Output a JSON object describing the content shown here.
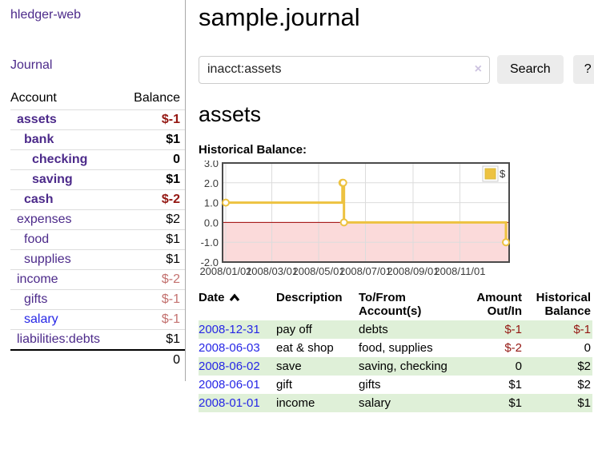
{
  "app": {
    "title": "hledger-web",
    "nav_journal": "Journal"
  },
  "colors": {
    "link_purple": "#4c2a8a",
    "link_blue": "#2626e6",
    "neg_strong": "#941712",
    "neg_soft": "#c3716f",
    "row_green": "#dff0d8",
    "button_bg": "#ececec",
    "chart_gold": "#edc240"
  },
  "sidebar": {
    "table": {
      "col_account": "Account",
      "col_balance": "Balance",
      "rows": [
        {
          "account": "assets",
          "balance": "$-1",
          "indent": 1,
          "bold": true,
          "neg": "strong"
        },
        {
          "account": "bank",
          "balance": "$1",
          "indent": 2,
          "bold": true
        },
        {
          "account": "checking",
          "balance": "0",
          "indent": 3,
          "bold": true
        },
        {
          "account": "saving",
          "balance": "$1",
          "indent": 3,
          "bold": true
        },
        {
          "account": "cash",
          "balance": "$-2",
          "indent": 2,
          "bold": true,
          "neg": "strong"
        },
        {
          "account": "expenses",
          "balance": "$2",
          "indent": 1
        },
        {
          "account": "food",
          "balance": "$1",
          "indent": 2
        },
        {
          "account": "supplies",
          "balance": "$1",
          "indent": 2
        },
        {
          "account": "income",
          "balance": "$-2",
          "indent": 1,
          "neg": "soft"
        },
        {
          "account": "gifts",
          "balance": "$-1",
          "indent": 2,
          "neg": "soft"
        },
        {
          "account": "salary",
          "balance": "$-1",
          "indent": 2,
          "neg": "soft",
          "link_blue": true
        },
        {
          "account": "liabilities:debts",
          "balance": "$1",
          "indent": 1
        }
      ],
      "total": "0"
    }
  },
  "header": {
    "title": "sample.journal"
  },
  "search": {
    "value": "inacct:assets",
    "clear_icon": "×",
    "button": "Search",
    "help_button": "?"
  },
  "account_page": {
    "heading": "assets",
    "chart_title": "Historical Balance:"
  },
  "chart_data": {
    "type": "line",
    "style": "step",
    "title": "Historical Balance:",
    "series_name": "$",
    "legend_position": "top-right",
    "grid": true,
    "ylim": [
      -2,
      3
    ],
    "y_ticks": [
      3.0,
      2.0,
      1.0,
      0.0,
      -1.0,
      -2.0
    ],
    "x_ticks": [
      "2008/01/01",
      "2008/03/01",
      "2008/05/01",
      "2008/07/01",
      "2008/09/01",
      "2008/11/01"
    ],
    "x_range": [
      "2008-01-01",
      "2008-12-31"
    ],
    "points": [
      {
        "date": "2008-01-01",
        "value": 1
      },
      {
        "date": "2008-06-01",
        "value": 2
      },
      {
        "date": "2008-06-02",
        "value": 2
      },
      {
        "date": "2008-06-03",
        "value": 0
      },
      {
        "date": "2008-12-31",
        "value": -1
      }
    ],
    "line_color": "#edc240",
    "point_fill": "#ffffff",
    "negative_fill": "#fbdada",
    "zero_line_color": "#a00000",
    "border_color": "#4a4a4a",
    "grid_color": "#dcdcdc"
  },
  "register": {
    "columns": [
      "Date",
      "Description",
      "To/From Account(s)",
      "Amount Out/In",
      "Historical Balance"
    ],
    "sort": {
      "column": "Date",
      "direction": "asc"
    },
    "rows": [
      {
        "date": "2008-12-31",
        "description": "pay off",
        "accounts": "debts",
        "amount": "$-1",
        "amount_neg": true,
        "balance": "$-1",
        "balance_neg": true,
        "shaded": true
      },
      {
        "date": "2008-06-03",
        "description": "eat & shop",
        "accounts": "food, supplies",
        "amount": "$-2",
        "amount_neg": true,
        "balance": "0",
        "balance_neg": false,
        "shaded": false
      },
      {
        "date": "2008-06-02",
        "description": "save",
        "accounts": "saving, checking",
        "amount": "0",
        "amount_neg": false,
        "balance": "$2",
        "balance_neg": false,
        "shaded": true
      },
      {
        "date": "2008-06-01",
        "description": "gift",
        "accounts": "gifts",
        "amount": "$1",
        "amount_neg": false,
        "balance": "$2",
        "balance_neg": false,
        "shaded": false
      },
      {
        "date": "2008-01-01",
        "description": "income",
        "accounts": "salary",
        "amount": "$1",
        "amount_neg": false,
        "balance": "$1",
        "balance_neg": false,
        "shaded": true
      }
    ]
  }
}
